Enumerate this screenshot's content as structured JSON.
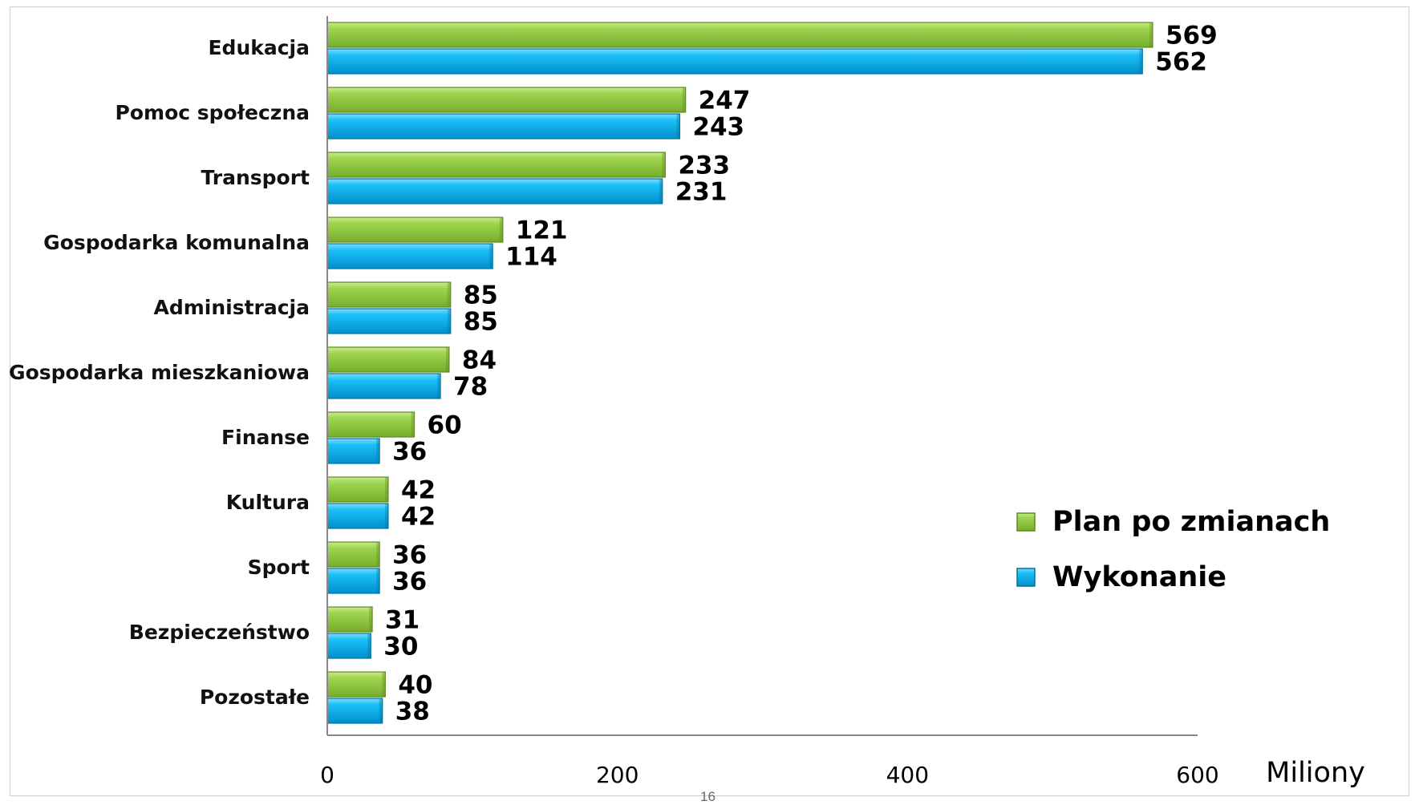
{
  "page_number": "16",
  "chart_data": {
    "type": "bar",
    "orientation": "horizontal",
    "categories": [
      "Edukacja",
      "Pomoc społeczna",
      "Transport",
      "Gospodarka komunalna",
      "Administracja",
      "Gospodarka mieszkaniowa",
      "Finanse",
      "Kultura",
      "Sport",
      "Bezpieczeństwo",
      "Pozostałe"
    ],
    "series": [
      {
        "name": "Plan po zmianach",
        "color": "#8cc63f",
        "values": [
          569,
          247,
          233,
          121,
          85,
          84,
          60,
          42,
          36,
          31,
          40
        ],
        "labels": [
          "569",
          "247",
          "233",
          "121",
          "85",
          "84",
          "60",
          "42",
          "36",
          "31",
          "40"
        ]
      },
      {
        "name": "Wykonanie",
        "color": "#00b0f0",
        "values": [
          562,
          243,
          231,
          114,
          85,
          78,
          36,
          42,
          36,
          30,
          38
        ],
        "labels": [
          "562",
          "243",
          "231",
          "114",
          "85",
          "78",
          "36",
          "42",
          "36",
          "30",
          "38"
        ]
      }
    ],
    "xlim": [
      0,
      600
    ],
    "x_ticks": [
      0,
      200,
      400,
      600
    ],
    "x_tick_labels": [
      "0",
      "200",
      "400",
      "600"
    ],
    "x_unit": "Miliony",
    "grid": false,
    "legend_position": "right"
  }
}
